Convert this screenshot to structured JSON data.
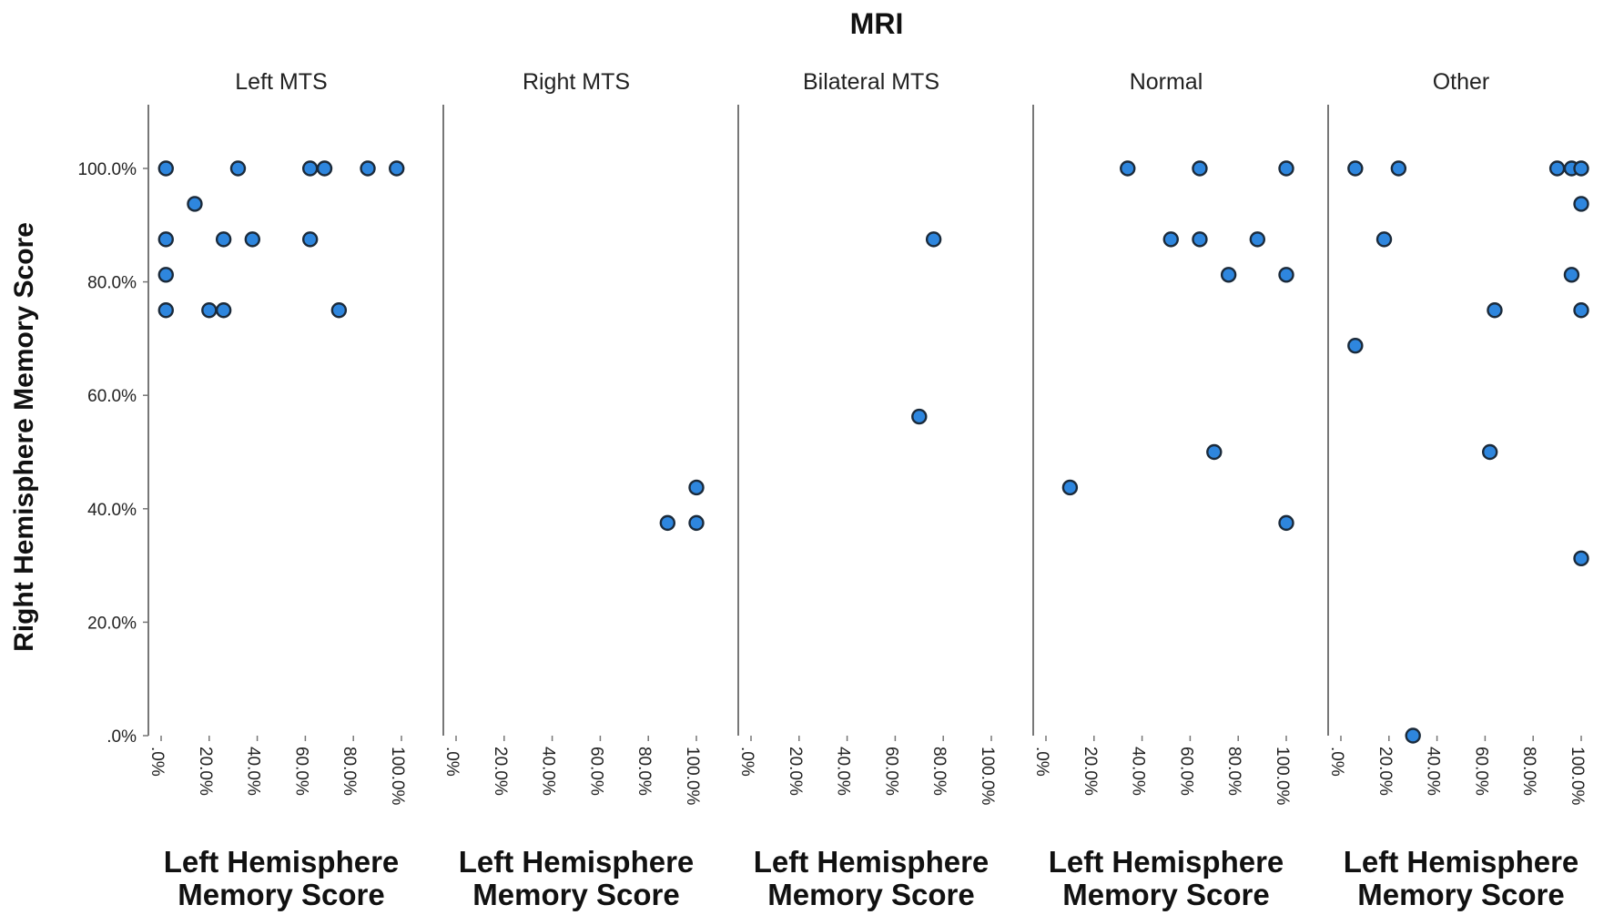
{
  "chart_data": {
    "type": "scatter",
    "title": "MRI",
    "ylabel": "Right Hemisphere Memory Score",
    "xlabel_lines": [
      "Left Hemisphere",
      "Memory Score"
    ],
    "xlim": [
      0,
      100
    ],
    "ylim": [
      0,
      110
    ],
    "x_ticks": [
      ".0%",
      "20.0%",
      "40.0%",
      "60.0%",
      "80.0%",
      "100.0%"
    ],
    "y_ticks": [
      ".0%",
      "20.0%",
      "40.0%",
      "60.0%",
      "80.0%",
      "100.0%"
    ],
    "point_color": "#2e86de",
    "panels": [
      {
        "name": "Left MTS",
        "points": [
          [
            2,
            100
          ],
          [
            2,
            87.5
          ],
          [
            2,
            81.25
          ],
          [
            2,
            75
          ],
          [
            14,
            93.75
          ],
          [
            20,
            75
          ],
          [
            26,
            87.5
          ],
          [
            26,
            75
          ],
          [
            32,
            100
          ],
          [
            38,
            87.5
          ],
          [
            62,
            100
          ],
          [
            62,
            87.5
          ],
          [
            68,
            100
          ],
          [
            74,
            75
          ],
          [
            86,
            100
          ],
          [
            98,
            100
          ]
        ]
      },
      {
        "name": "Right MTS",
        "points": [
          [
            88,
            37.5
          ],
          [
            100,
            43.75
          ],
          [
            100,
            37.5
          ]
        ]
      },
      {
        "name": "Bilateral MTS",
        "points": [
          [
            70,
            56.25
          ],
          [
            76,
            87.5
          ]
        ]
      },
      {
        "name": "Normal",
        "points": [
          [
            10,
            43.75
          ],
          [
            34,
            100
          ],
          [
            52,
            87.5
          ],
          [
            64,
            100
          ],
          [
            64,
            87.5
          ],
          [
            70,
            50
          ],
          [
            76,
            81.25
          ],
          [
            88,
            87.5
          ],
          [
            100,
            100
          ],
          [
            100,
            81.25
          ],
          [
            100,
            37.5
          ]
        ]
      },
      {
        "name": "Other",
        "points": [
          [
            6,
            68.75
          ],
          [
            6,
            100
          ],
          [
            18,
            87.5
          ],
          [
            24,
            100
          ],
          [
            30,
            0
          ],
          [
            62,
            50
          ],
          [
            64,
            75
          ],
          [
            90,
            100
          ],
          [
            96,
            100
          ],
          [
            96,
            81.25
          ],
          [
            100,
            100
          ],
          [
            100,
            93.75
          ],
          [
            100,
            75
          ],
          [
            100,
            31.25
          ]
        ]
      }
    ]
  }
}
